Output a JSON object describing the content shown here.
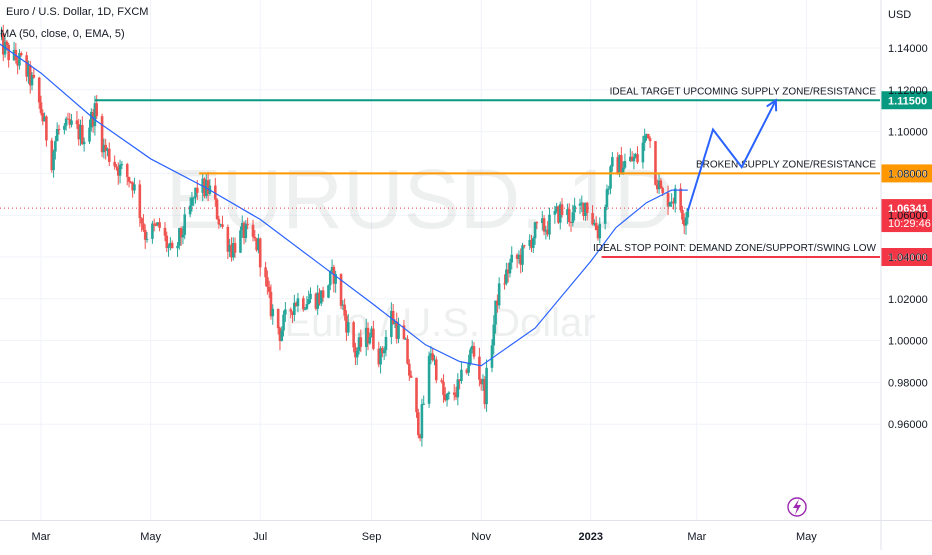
{
  "header": {
    "title": "Euro / U.S. Dollar, 1D, FXCM",
    "indicator": "MA (50, close, 0, EMA, 5)"
  },
  "watermark": {
    "symbol": "EURUSD, 1D",
    "name": "Euro / U.S. Dollar"
  },
  "colors": {
    "up_candle": "#26a69a",
    "down_candle": "#ef5350",
    "ma_line": "#2962ff",
    "target_line": "#089981",
    "supply_line": "#ff9800",
    "stop_line": "#f23645",
    "current_price": "#f23645",
    "projection_arrow": "#2962ff"
  },
  "icons": {
    "lightning": "lightning-icon"
  },
  "chart_data": {
    "type": "candlestick",
    "currency_label": "USD",
    "ylim": [
      0.945,
      1.158
    ],
    "y_ticks": [
      "1.14000",
      "1.12000",
      "1.10000",
      "1.08000",
      "1.06000",
      "1.04000",
      "1.02000",
      "1.00000",
      "0.98000",
      "0.96000"
    ],
    "x_ticks": [
      "Mar",
      "May",
      "Jul",
      "Sep",
      "Nov",
      "2023",
      "Mar",
      "May"
    ],
    "horizontal_levels": [
      {
        "price": 1.115,
        "label": "1.11500",
        "annotation": "IDEAL TARGET UPCOMING SUPPLY ZONE/RESISTANCE",
        "color": "#089981"
      },
      {
        "price": 1.08,
        "label": "1.08000",
        "annotation": "BROKEN SUPPLY ZONE/RESISTANCE",
        "color": "#ff9800"
      },
      {
        "price": 1.04,
        "label": "1.04000",
        "annotation": "IDEAL STOP POINT: DEMAND ZONE/SUPPORT/SWING LOW",
        "color": "#f23645"
      }
    ],
    "current_price": {
      "value": 1.06341,
      "label": "1.06341",
      "countdown": "10:29:46"
    },
    "close_path": [
      [
        "2022-02-04",
        1.145
      ],
      [
        "2022-02-12",
        1.136
      ],
      [
        "2022-02-18",
        1.133
      ],
      [
        "2022-02-25",
        1.122
      ],
      [
        "2022-03-01",
        1.11
      ],
      [
        "2022-03-07",
        1.087
      ],
      [
        "2022-03-10",
        1.1
      ],
      [
        "2022-03-18",
        1.102
      ],
      [
        "2022-03-25",
        1.098
      ],
      [
        "2022-03-31",
        1.11
      ],
      [
        "2022-04-05",
        1.092
      ],
      [
        "2022-04-14",
        1.082
      ],
      [
        "2022-04-21",
        1.076
      ],
      [
        "2022-04-28",
        1.051
      ],
      [
        "2022-05-06",
        1.054
      ],
      [
        "2022-05-13",
        1.04
      ],
      [
        "2022-05-20",
        1.055
      ],
      [
        "2022-05-27",
        1.073
      ],
      [
        "2022-06-03",
        1.072
      ],
      [
        "2022-06-10",
        1.053
      ],
      [
        "2022-06-15",
        1.044
      ],
      [
        "2022-06-22",
        1.052
      ],
      [
        "2022-06-30",
        1.045
      ],
      [
        "2022-07-06",
        1.018
      ],
      [
        "2022-07-12",
        1.004
      ],
      [
        "2022-07-20",
        1.019
      ],
      [
        "2022-07-28",
        1.02
      ],
      [
        "2022-08-04",
        1.021
      ],
      [
        "2022-08-11",
        1.032
      ],
      [
        "2022-08-18",
        1.009
      ],
      [
        "2022-08-23",
        0.994
      ],
      [
        "2022-08-31",
        1.004
      ],
      [
        "2022-09-06",
        0.992
      ],
      [
        "2022-09-12",
        1.012
      ],
      [
        "2022-09-20",
        0.996
      ],
      [
        "2022-09-26",
        0.962
      ],
      [
        "2022-09-28",
        0.958
      ],
      [
        "2022-10-04",
        0.996
      ],
      [
        "2022-10-12",
        0.97
      ],
      [
        "2022-10-20",
        0.978
      ],
      [
        "2022-10-27",
        0.996
      ],
      [
        "2022-11-03",
        0.975
      ],
      [
        "2022-11-10",
        1.021
      ],
      [
        "2022-11-17",
        1.036
      ],
      [
        "2022-11-24",
        1.041
      ],
      [
        "2022-12-01",
        1.052
      ],
      [
        "2022-12-08",
        1.055
      ],
      [
        "2022-12-15",
        1.062
      ],
      [
        "2022-12-22",
        1.059
      ],
      [
        "2022-12-29",
        1.066
      ],
      [
        "2023-01-05",
        1.052
      ],
      [
        "2023-01-13",
        1.083
      ],
      [
        "2023-01-20",
        1.085
      ],
      [
        "2023-01-27",
        1.087
      ],
      [
        "2023-02-02",
        1.101
      ],
      [
        "2023-02-06",
        1.08
      ],
      [
        "2023-02-10",
        1.068
      ],
      [
        "2023-02-17",
        1.069
      ],
      [
        "2023-02-22",
        1.06
      ],
      [
        "2023-02-24",
        1.0634
      ]
    ],
    "ema_path": [
      [
        "2022-02-01",
        1.145
      ],
      [
        "2022-03-01",
        1.128
      ],
      [
        "2022-04-01",
        1.105
      ],
      [
        "2022-05-01",
        1.087
      ],
      [
        "2022-06-01",
        1.073
      ],
      [
        "2022-07-01",
        1.058
      ],
      [
        "2022-08-01",
        1.038
      ],
      [
        "2022-09-01",
        1.018
      ],
      [
        "2022-10-01",
        0.998
      ],
      [
        "2022-10-20",
        0.99
      ],
      [
        "2022-11-01",
        0.988
      ],
      [
        "2022-12-01",
        1.006
      ],
      [
        "2023-01-01",
        1.038
      ],
      [
        "2023-01-15",
        1.054
      ],
      [
        "2023-02-01",
        1.066
      ],
      [
        "2023-02-15",
        1.072
      ],
      [
        "2023-02-24",
        1.072
      ]
    ],
    "projection_path": [
      [
        "2023-02-24",
        1.062
      ],
      [
        "2023-03-10",
        1.101
      ],
      [
        "2023-03-26",
        1.083
      ],
      [
        "2023-04-14",
        1.115
      ]
    ]
  }
}
